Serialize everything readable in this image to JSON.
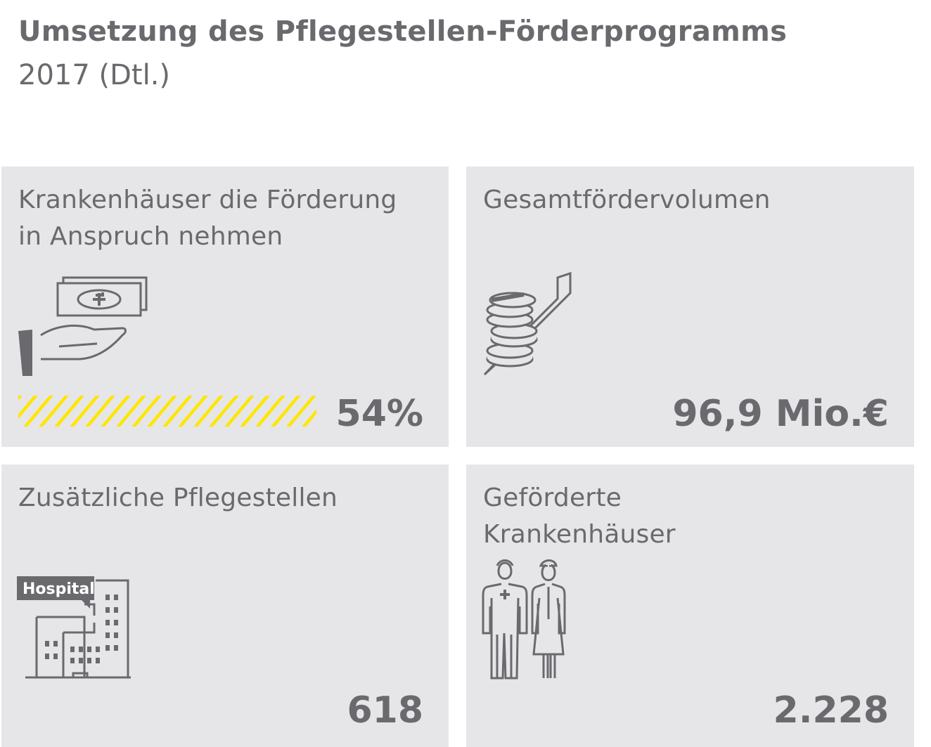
{
  "header": {
    "title": "Umsetzung des Pflegestellen-Förderprogramms",
    "subtitle": "2017 (Dtl.)"
  },
  "cards": [
    {
      "label": "Krankenhäuser die Förderung\nin Anspruch nehmen",
      "value": "54%",
      "share": 0.54,
      "icon": "hand-money-icon"
    },
    {
      "label": "Gesamtfördervolumen",
      "value": "96,9 Mio.€",
      "icon": "coins-chart-icon"
    },
    {
      "label": "Zusätzliche Pflegestellen",
      "value": "618",
      "icon": "hospital-icon",
      "icon_text": "Hospital"
    },
    {
      "label": "Geförderte\nKrankenhäuser",
      "value": "2.228",
      "icon": "doctor-nurse-icon"
    }
  ],
  "colors": {
    "card_bg": "#e6e6e9",
    "text": "#6a6a6e",
    "accent": "#ffe600"
  }
}
